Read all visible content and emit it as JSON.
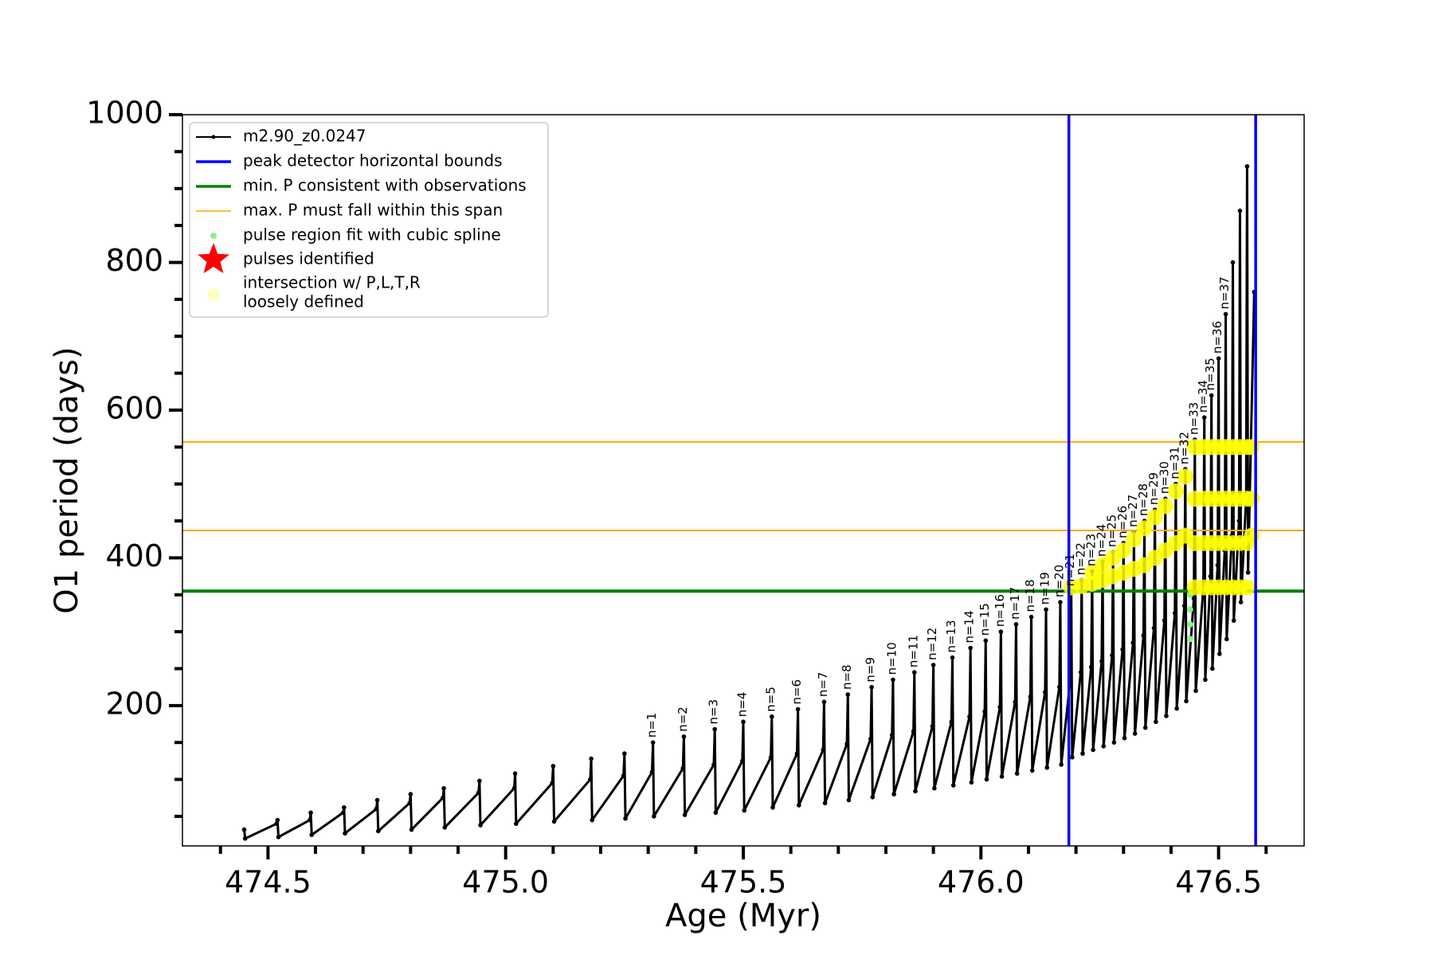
{
  "chart_data": {
    "type": "line",
    "x_label": "Age (Myr)",
    "y_label": "O1 period (days)",
    "xlim": [
      474.32,
      476.68
    ],
    "ylim": [
      10,
      1000
    ],
    "xticks": [
      474.5,
      {
        "value": 475,
        "label": "475.0"
      },
      475.5,
      {
        "value": 476,
        "label": "476.0"
      },
      476.5
    ],
    "xminorticks": [
      474.4,
      474.6,
      474.7,
      474.8,
      474.9,
      475.1,
      475.2,
      475.3,
      475.4,
      475.6,
      475.7,
      475.8,
      475.9,
      476.1,
      476.2,
      476.3,
      476.4,
      476.6
    ],
    "yticks": [
      200,
      400,
      600,
      800,
      1000
    ],
    "yminorticks": [
      50,
      100,
      150,
      250,
      300,
      350,
      450,
      500,
      550,
      650,
      700,
      750,
      850,
      900,
      950
    ],
    "legend": "upper left",
    "series": [
      {
        "name": "m2.90_z0.0247",
        "color": "#000000",
        "marker": "dot",
        "x": [
          474.45,
          474.452,
          474.518,
          474.52,
          474.522,
          474.588,
          474.59,
          474.592,
          474.658,
          474.66,
          474.662,
          474.728,
          474.73,
          474.732,
          474.798,
          474.8,
          474.802,
          474.868,
          474.87,
          474.872,
          474.943,
          474.945,
          474.947,
          475.018,
          475.02,
          475.022,
          475.098,
          475.1,
          475.102,
          475.178,
          475.18,
          475.182,
          475.248,
          475.25,
          475.252,
          475.308,
          475.31,
          475.312,
          475.373,
          475.375,
          475.377,
          475.438,
          475.44,
          475.442,
          475.498,
          475.5,
          475.502,
          475.558,
          475.56,
          475.562,
          475.613,
          475.615,
          475.617,
          475.668,
          475.67,
          475.672,
          475.718,
          475.72,
          475.722,
          475.768,
          475.77,
          475.772,
          475.813,
          475.815,
          475.817,
          475.858,
          475.86,
          475.862,
          475.898,
          475.9,
          475.902,
          475.938,
          475.94,
          475.942,
          475.976,
          475.978,
          475.98,
          476.008,
          476.01,
          476.012,
          476.04,
          476.042,
          476.044,
          476.072,
          476.074,
          476.076,
          476.104,
          476.106,
          476.108,
          476.135,
          476.137,
          476.139,
          476.165,
          476.167,
          476.169,
          476.188,
          476.19,
          476.192,
          476.21,
          476.212,
          476.214,
          476.232,
          476.234,
          476.236,
          476.254,
          476.256,
          476.258,
          476.276,
          476.278,
          476.28,
          476.298,
          476.3,
          476.302,
          476.32,
          476.322,
          476.324,
          476.342,
          476.344,
          476.346,
          476.364,
          476.366,
          476.368,
          476.386,
          476.388,
          476.39,
          476.408,
          476.41,
          476.412,
          476.428,
          476.43,
          476.432,
          476.448,
          476.45,
          476.452,
          476.468,
          476.47,
          476.472,
          476.483,
          476.485,
          476.487,
          476.498,
          476.5,
          476.502,
          476.513,
          476.515,
          476.517,
          476.528,
          476.53,
          476.532,
          476.543,
          476.545,
          476.547,
          476.558,
          476.56,
          476.562,
          476.575
        ],
        "values": [
          32,
          20,
          40,
          45,
          22,
          45,
          55,
          25,
          55,
          62,
          27,
          60,
          72,
          30,
          68,
          80,
          32,
          75,
          88,
          35,
          82,
          98,
          38,
          88,
          108,
          40,
          95,
          118,
          43,
          100,
          128,
          45,
          105,
          135,
          47,
          110,
          150,
          50,
          115,
          158,
          52,
          120,
          168,
          55,
          125,
          178,
          58,
          130,
          185,
          62,
          135,
          195,
          65,
          140,
          205,
          68,
          148,
          215,
          72,
          155,
          225,
          76,
          160,
          235,
          80,
          165,
          245,
          84,
          172,
          255,
          88,
          178,
          265,
          92,
          185,
          278,
          96,
          192,
          288,
          100,
          198,
          300,
          104,
          205,
          310,
          108,
          212,
          320,
          112,
          218,
          330,
          116,
          225,
          340,
          120,
          235,
          355,
          130,
          245,
          370,
          135,
          252,
          382,
          140,
          260,
          395,
          145,
          268,
          408,
          150,
          276,
          420,
          156,
          285,
          435,
          162,
          295,
          450,
          170,
          305,
          465,
          178,
          315,
          480,
          186,
          325,
          500,
          196,
          335,
          520,
          206,
          345,
          560,
          220,
          360,
          590,
          235,
          375,
          620,
          250,
          390,
          670,
          270,
          410,
          730,
          290,
          430,
          800,
          315,
          450,
          870,
          340,
          480,
          930,
          380,
          760
        ]
      },
      {
        "name": "pulse region fit with cubic spline",
        "color": "#90ee90",
        "type": "scatter",
        "marker": "circle",
        "x": [
          476.44,
          476.44,
          476.44,
          476.44
        ],
        "values": [
          290,
          310,
          330,
          350
        ]
      },
      {
        "name": "pulses identified",
        "color": "#ff0000",
        "type": "scatter",
        "marker": "star",
        "x": [],
        "values": []
      },
      {
        "name": [
          "intersection w/ P,L,T,R",
          "loosely defined"
        ],
        "color": "#ffff00",
        "type": "scatter",
        "marker": "blob",
        "x": [
          476.19,
          476.212,
          476.234,
          476.234,
          476.256,
          476.256,
          476.278,
          476.278,
          476.3,
          476.3,
          476.322,
          476.322,
          476.344,
          476.344,
          476.366,
          476.366,
          476.388,
          476.388,
          476.41,
          476.41,
          476.43,
          476.43,
          476.45,
          476.45,
          476.45,
          476.45,
          476.47,
          476.47,
          476.47,
          476.47,
          476.485,
          476.485,
          476.485,
          476.485,
          476.5,
          476.5,
          476.5,
          476.5,
          476.515,
          476.515,
          476.515,
          476.515,
          476.53,
          476.53,
          476.53,
          476.53,
          476.545,
          476.545,
          476.545,
          476.545,
          476.56,
          476.56,
          476.56,
          476.56,
          476.57,
          476.57,
          476.57
        ],
        "values": [
          360,
          362,
          365,
          380,
          370,
          390,
          375,
          400,
          380,
          410,
          385,
          425,
          390,
          440,
          400,
          455,
          410,
          470,
          420,
          490,
          430,
          510,
          360,
          420,
          480,
          550,
          360,
          420,
          480,
          550,
          360,
          420,
          480,
          550,
          360,
          420,
          480,
          550,
          360,
          420,
          480,
          550,
          360,
          420,
          480,
          550,
          360,
          420,
          480,
          550,
          360,
          420,
          480,
          550,
          430,
          480,
          550
        ]
      }
    ],
    "vlines": {
      "name": "peak detector horizontal bounds",
      "color": "#0000ff",
      "x": [
        476.185,
        476.578
      ]
    },
    "hlines": [
      {
        "name": "min. P consistent with observations",
        "color": "#008000",
        "y": [
          355
        ]
      },
      {
        "name": "max. P must fall within this span",
        "color": "#ffa500",
        "y": [
          437,
          557
        ]
      }
    ],
    "annotations": {
      "labels": [
        "n=1",
        "n=2",
        "n=3",
        "n=4",
        "n=5",
        "n=6",
        "n=7",
        "n=8",
        "n=9",
        "n=10",
        "n=11",
        "n=12",
        "n=13",
        "n=14",
        "n=15",
        "n=16",
        "n=17",
        "n=18",
        "n=19",
        "n=20",
        "n=21",
        "n=22",
        "n=23",
        "n=24",
        "n=25",
        "n=26",
        "n=27",
        "n=28",
        "n=29",
        "n=30",
        "n=31",
        "n=32",
        "n=33",
        "n=34",
        "n=35",
        "n=36",
        "n=37"
      ],
      "x": [
        475.31,
        475.375,
        475.44,
        475.5,
        475.56,
        475.615,
        475.67,
        475.72,
        475.77,
        475.815,
        475.86,
        475.9,
        475.94,
        475.978,
        476.01,
        476.042,
        476.074,
        476.106,
        476.137,
        476.167,
        476.19,
        476.212,
        476.234,
        476.256,
        476.278,
        476.3,
        476.322,
        476.344,
        476.366,
        476.388,
        476.41,
        476.43,
        476.45,
        476.47,
        476.485,
        476.5,
        476.515
      ],
      "y": [
        150,
        158,
        168,
        178,
        185,
        195,
        205,
        215,
        225,
        235,
        245,
        255,
        265,
        278,
        288,
        300,
        310,
        320,
        330,
        340,
        355,
        370,
        382,
        395,
        408,
        420,
        435,
        450,
        465,
        480,
        500,
        520,
        560,
        590,
        620,
        670,
        730
      ]
    }
  }
}
